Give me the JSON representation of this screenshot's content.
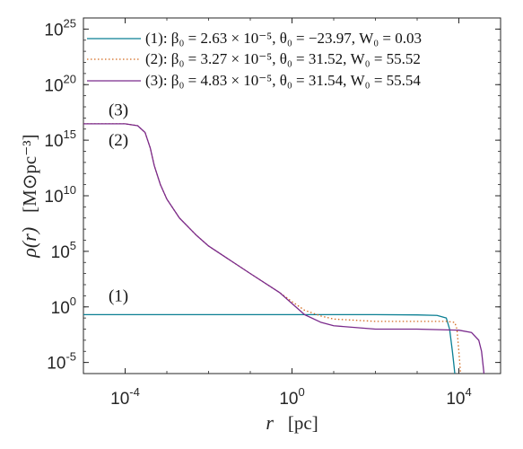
{
  "colors": {
    "series1": "#0a7f93",
    "series2": "#d2691e",
    "series3": "#7a2a8c",
    "axis": "#262626",
    "background": "#ffffff"
  },
  "chart_data": {
    "type": "line",
    "xscale": "log",
    "yscale": "log",
    "xlim": [
      1e-05,
      100000
    ],
    "ylim": [
      1e-06,
      1e+26
    ],
    "xticks": [
      {
        "value": 0.0001,
        "base": "10",
        "exp": "-4"
      },
      {
        "value": 1,
        "base": "10",
        "exp": "0"
      },
      {
        "value": 10000,
        "base": "10",
        "exp": "4"
      }
    ],
    "yticks": [
      {
        "value": 1e-05,
        "base": "10",
        "exp": "-5"
      },
      {
        "value": 1,
        "base": "10",
        "exp": "0"
      },
      {
        "value": 100000.0,
        "base": "10",
        "exp": "5"
      },
      {
        "value": 10000000000.0,
        "base": "10",
        "exp": "10"
      },
      {
        "value": 1000000000000000.0,
        "base": "10",
        "exp": "15"
      },
      {
        "value": 1e+20,
        "base": "10",
        "exp": "20"
      },
      {
        "value": 1e+25,
        "base": "10",
        "exp": "25"
      }
    ],
    "xlabel": "r",
    "xlabel_unit": "[pc]",
    "ylabel": "ρ(r)",
    "ylabel_unit": "[M⊙pc⁻³]",
    "grid": false,
    "legend_position": "top-right",
    "series": [
      {
        "name": "(1): β₀ = 2.63 × 10⁻⁵, θ₀ = −23.97, W₀ = 0.03",
        "style": "solid",
        "x": [
          1e-05,
          0.001,
          0.1,
          10,
          100,
          1000,
          3000,
          5000,
          6000,
          7000,
          7500,
          8000
        ],
        "y": [
          0.2,
          0.2,
          0.2,
          0.2,
          0.2,
          0.19,
          0.17,
          0.1,
          0.01,
          0.0001,
          1e-05,
          1e-06
        ]
      },
      {
        "name": "(2): β₀ = 3.27 × 10⁻⁵, θ₀ = 31.52, W₀ = 55.52",
        "style": "dotted",
        "x": [
          1e-05,
          0.0001,
          0.0002,
          0.0003,
          0.0004,
          0.0005,
          0.0007,
          0.001,
          0.002,
          0.005,
          0.01,
          0.1,
          0.5,
          1,
          2,
          5,
          10,
          100,
          1000,
          5000,
          8000,
          9000,
          10000,
          11000
        ],
        "y": [
          3e+16,
          3e+16,
          2e+16,
          5000000000000000.0,
          200000000000000.0,
          5000000000000.0,
          100000000000.0,
          5000000000.0,
          100000000.0,
          3000000.0,
          300000.0,
          1000.0,
          20,
          3,
          0.5,
          0.15,
          0.08,
          0.05,
          0.05,
          0.05,
          0.04,
          0.01,
          0.0001,
          1e-06
        ]
      },
      {
        "name": "(3): β₀ = 4.83 × 10⁻⁵, θ₀ = 31.54, W₀ = 55.54",
        "style": "solid",
        "x": [
          1e-05,
          0.0001,
          0.0002,
          0.0003,
          0.0004,
          0.0005,
          0.0007,
          0.001,
          0.002,
          0.005,
          0.01,
          0.1,
          0.5,
          1,
          2,
          5,
          10,
          100,
          1000,
          10000,
          20000,
          30000,
          35000,
          40000
        ],
        "y": [
          3e+16,
          3e+16,
          2e+16,
          5000000000000000.0,
          200000000000000.0,
          5000000000000.0,
          100000000000.0,
          5000000000.0,
          100000000.0,
          3000000.0,
          300000.0,
          1000.0,
          20,
          2,
          0.2,
          0.04,
          0.02,
          0.01,
          0.01,
          0.008,
          0.005,
          0.001,
          0.0001,
          1e-06
        ]
      }
    ],
    "annotations": [
      {
        "text": "(3)",
        "x": 4e-05,
        "y": 5e+17
      },
      {
        "text": "(2)",
        "x": 4e-05,
        "y": 1000000000000000.0
      },
      {
        "text": "(1)",
        "x": 4e-05,
        "y": 10
      }
    ]
  }
}
